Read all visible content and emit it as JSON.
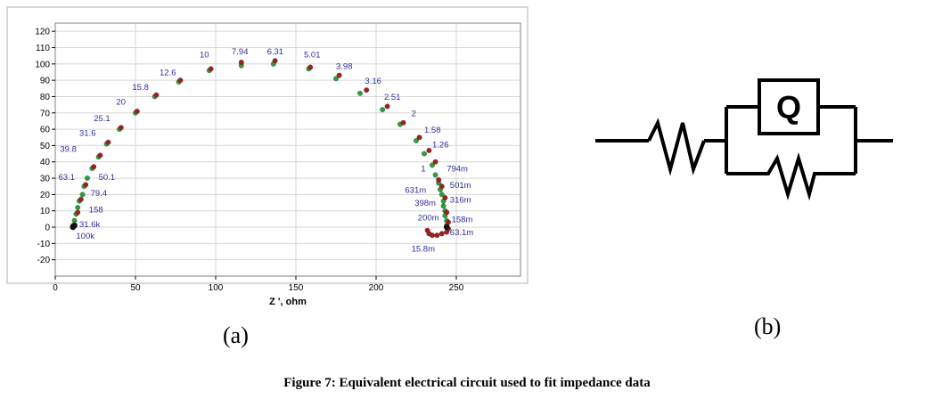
{
  "chart_data": {
    "type": "scatter",
    "panel_label": "(a)",
    "xlabel": "Z ', ohm",
    "ylabel": "",
    "xlim": [
      0,
      290
    ],
    "ylim": [
      -30,
      125
    ],
    "xticks": [
      0,
      50,
      100,
      150,
      200,
      250
    ],
    "yticks": [
      -20,
      -10,
      0,
      10,
      20,
      30,
      40,
      50,
      60,
      70,
      80,
      90,
      100,
      110,
      120
    ],
    "grid": true,
    "series": [
      {
        "color": "#2e9e3a",
        "points": [
          [
            11,
            1
          ],
          [
            12,
            4
          ],
          [
            13,
            8
          ],
          [
            14,
            12
          ],
          [
            15,
            16
          ],
          [
            17,
            20
          ],
          [
            18,
            25
          ],
          [
            20,
            30
          ],
          [
            23,
            36
          ],
          [
            27,
            43
          ],
          [
            32,
            51
          ],
          [
            40,
            60
          ],
          [
            50,
            70
          ],
          [
            62,
            80
          ],
          [
            77,
            89
          ],
          [
            96,
            96
          ],
          [
            116,
            99
          ],
          [
            136,
            100
          ],
          [
            158,
            97
          ],
          [
            175,
            91
          ],
          [
            190,
            82
          ],
          [
            204,
            72
          ],
          [
            215,
            63
          ],
          [
            225,
            53
          ],
          [
            230,
            45
          ],
          [
            235,
            38
          ],
          [
            237,
            32
          ],
          [
            239,
            27
          ],
          [
            240,
            23
          ],
          [
            241,
            20
          ],
          [
            242,
            16
          ],
          [
            242,
            13
          ],
          [
            243,
            10
          ],
          [
            243,
            7
          ],
          [
            244,
            4
          ],
          [
            244,
            1
          ]
        ]
      },
      {
        "color": "#a01f1f",
        "points": [
          [
            12,
            1
          ],
          [
            14,
            9
          ],
          [
            16,
            17
          ],
          [
            19,
            26
          ],
          [
            24,
            37
          ],
          [
            28,
            44
          ],
          [
            33,
            52
          ],
          [
            41,
            61
          ],
          [
            51,
            71
          ],
          [
            63,
            81
          ],
          [
            78,
            90
          ],
          [
            97,
            97
          ],
          [
            116,
            101
          ],
          [
            137,
            102
          ],
          [
            159,
            98
          ],
          [
            177,
            93
          ],
          [
            194,
            84
          ],
          [
            207,
            74
          ],
          [
            217,
            64
          ],
          [
            227,
            55
          ],
          [
            233,
            47
          ],
          [
            237,
            40
          ],
          [
            239,
            29
          ],
          [
            241,
            25
          ],
          [
            243,
            18
          ],
          [
            244,
            9
          ],
          [
            245,
            3
          ],
          [
            245,
            -1
          ],
          [
            244,
            -3
          ],
          [
            241,
            -4
          ],
          [
            238,
            -5
          ],
          [
            235,
            -5
          ],
          [
            233,
            -4
          ],
          [
            232,
            -2
          ]
        ]
      },
      {
        "color": "#111111",
        "points": [
          [
            11,
            0
          ],
          [
            12,
            1
          ],
          [
            244,
            0
          ]
        ]
      }
    ],
    "freq_labels": [
      {
        "text": "100k",
        "x": 13,
        "y": -7
      },
      {
        "text": "31.6k",
        "x": 15,
        "y": 0
      },
      {
        "text": "158",
        "x": 21,
        "y": 9
      },
      {
        "text": "79.4",
        "x": 22,
        "y": 19
      },
      {
        "text": "63.1",
        "x": 2,
        "y": 29
      },
      {
        "text": "50.1",
        "x": 27,
        "y": 29
      },
      {
        "text": "39.8",
        "x": 3,
        "y": 46
      },
      {
        "text": "31.6",
        "x": 15,
        "y": 56
      },
      {
        "text": "25.1",
        "x": 24,
        "y": 65
      },
      {
        "text": "20",
        "x": 38,
        "y": 75
      },
      {
        "text": "15.8",
        "x": 48,
        "y": 84
      },
      {
        "text": "12.6",
        "x": 65,
        "y": 93
      },
      {
        "text": "10",
        "x": 90,
        "y": 104
      },
      {
        "text": "7.94",
        "x": 110,
        "y": 106
      },
      {
        "text": "6.31",
        "x": 132,
        "y": 106
      },
      {
        "text": "5.01",
        "x": 155,
        "y": 104
      },
      {
        "text": "3.98",
        "x": 175,
        "y": 97
      },
      {
        "text": "3.16",
        "x": 193,
        "y": 88
      },
      {
        "text": "2.51",
        "x": 205,
        "y": 78
      },
      {
        "text": "2",
        "x": 222,
        "y": 68
      },
      {
        "text": "1.58",
        "x": 230,
        "y": 58
      },
      {
        "text": "1.26",
        "x": 235,
        "y": 49
      },
      {
        "text": "1",
        "x": 228,
        "y": 34
      },
      {
        "text": "794m",
        "x": 244,
        "y": 34
      },
      {
        "text": "501m",
        "x": 246,
        "y": 24
      },
      {
        "text": "631m",
        "x": 218,
        "y": 21
      },
      {
        "text": "316m",
        "x": 246,
        "y": 15
      },
      {
        "text": "398m",
        "x": 224,
        "y": 13
      },
      {
        "text": "200m",
        "x": 226,
        "y": 4
      },
      {
        "text": "158m",
        "x": 247,
        "y": 3
      },
      {
        "text": "63.1m",
        "x": 246,
        "y": -5
      },
      {
        "text": "15.8m",
        "x": 222,
        "y": -15
      }
    ]
  },
  "circuit": {
    "panel_label": "(b)",
    "element_label": "Q"
  },
  "caption": "Figure 7: Equivalent electrical circuit used to fit impedance data"
}
